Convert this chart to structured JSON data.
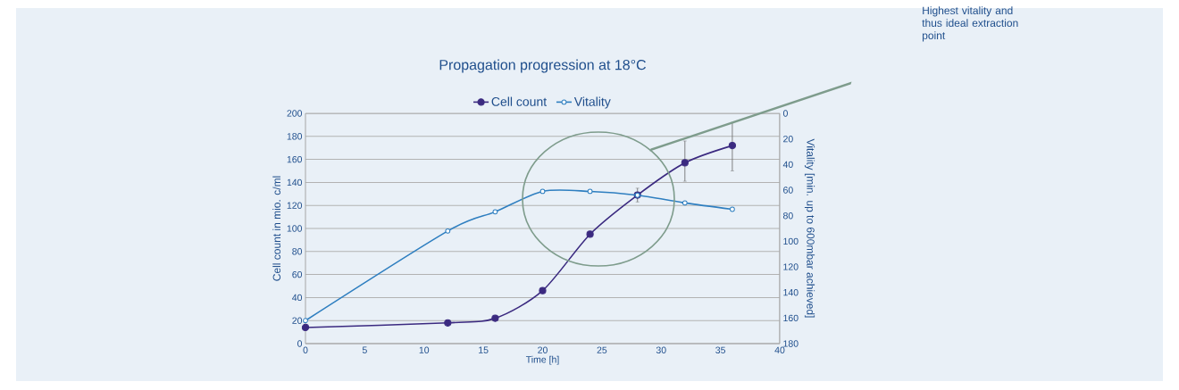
{
  "chart_data": {
    "type": "line",
    "title": "Propagation progression at 18°C",
    "xlabel": "Time [h]",
    "ylabel": "Cell count in mio. c/ml",
    "y2label": "Vitality [min. up to 600mbar achieved]",
    "annotations": [
      "Highest vitality and thus ideal extraction point"
    ],
    "x": [
      0,
      12,
      16,
      20,
      24,
      28,
      32,
      36
    ],
    "series": [
      {
        "name": "Cell count",
        "color": "#3b2a80",
        "values": [
          14,
          18,
          22,
          46,
          95,
          129,
          157,
          172
        ],
        "errors": [
          null,
          null,
          null,
          null,
          null,
          6,
          [
            141,
            176
          ],
          [
            150,
            192
          ]
        ]
      },
      {
        "name": "Vitality",
        "color": "#2f7fc0",
        "axis": "y2",
        "values": [
          162,
          92,
          77,
          61,
          61,
          64,
          70,
          75
        ]
      }
    ],
    "xlim": [
      0,
      40
    ],
    "xticks": [
      0,
      5,
      10,
      15,
      20,
      25,
      30,
      35,
      40
    ],
    "ylim": [
      0,
      200
    ],
    "yticks": [
      0,
      20,
      40,
      60,
      80,
      100,
      120,
      140,
      160,
      180,
      200
    ],
    "y2lim": [
      180,
      0
    ],
    "y2ticks": [
      0,
      20,
      40,
      60,
      80,
      100,
      120,
      140,
      160,
      180
    ],
    "grid": "y",
    "legend": "top",
    "marker": "circle",
    "line_style": "solid"
  }
}
